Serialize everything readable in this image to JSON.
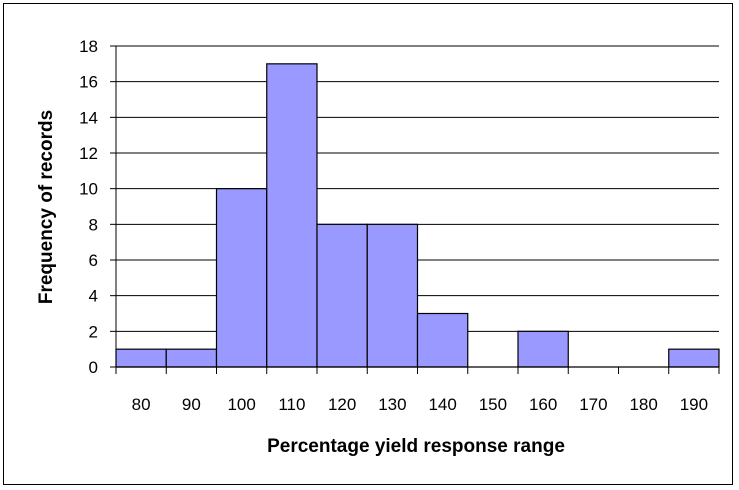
{
  "chart_data": {
    "type": "bar",
    "title": "",
    "xlabel": "Percentage yield response range",
    "ylabel": "Frequency of records",
    "categories": [
      "80",
      "90",
      "100",
      "110",
      "120",
      "130",
      "140",
      "150",
      "160",
      "170",
      "180",
      "190"
    ],
    "values": [
      1,
      1,
      10,
      17,
      8,
      8,
      3,
      0,
      2,
      0,
      0,
      1
    ],
    "ylim": [
      0,
      18
    ],
    "yticks": [
      0,
      2,
      4,
      6,
      8,
      10,
      12,
      14,
      16,
      18
    ],
    "grid": true,
    "legend": "none",
    "bar_color": "#9999ff"
  }
}
